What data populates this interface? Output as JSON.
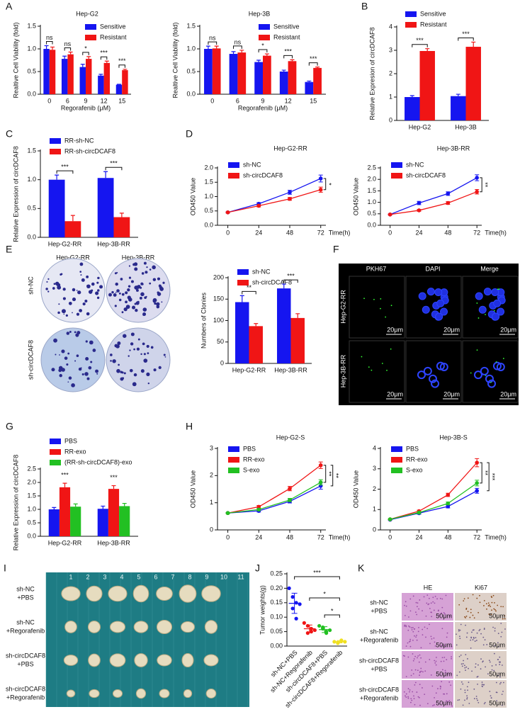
{
  "panel_letters": [
    "A",
    "B",
    "C",
    "D",
    "E",
    "F",
    "G",
    "H",
    "I",
    "J",
    "K"
  ],
  "chart_data": [
    {
      "type": "bar",
      "title": "Hep-G2",
      "xlabel": "Regorafenib (μM)",
      "ylabel": "Realtive Cell Viability (fold)",
      "categories": [
        "0",
        "6",
        "9",
        "12",
        "15"
      ],
      "series": [
        {
          "name": "Sensitive",
          "color": "#1515f0",
          "values": [
            1.0,
            0.78,
            0.6,
            0.41,
            0.21
          ],
          "errors": [
            0.07,
            0.06,
            0.06,
            0.03,
            0.01
          ]
        },
        {
          "name": "Resistant",
          "color": "#f01515",
          "values": [
            0.98,
            0.88,
            0.78,
            0.69,
            0.53
          ],
          "errors": [
            0.06,
            0.05,
            0.05,
            0.04,
            0.02
          ]
        }
      ],
      "ylim": [
        0,
        1.5
      ],
      "yticks": [
        {
          "value": 0,
          "label": "0.0"
        },
        0.5,
        {
          "value": 1,
          "label": "1.0"
        },
        1.5
      ],
      "annotations": [
        "ns",
        "ns",
        "*",
        "***",
        "***"
      ],
      "legend": "upper right"
    },
    {
      "type": "bar",
      "title": "Hep-3B",
      "xlabel": "Regorafenib (μM)",
      "ylabel": "Realtive Cell Viability (fold)",
      "categories": [
        "0",
        "6",
        "9",
        "12",
        "15"
      ],
      "series": [
        {
          "name": "Sensitive",
          "color": "#1515f0",
          "values": [
            1.0,
            0.89,
            0.71,
            0.5,
            0.27
          ],
          "errors": [
            0.06,
            0.05,
            0.04,
            0.03,
            0.02
          ]
        },
        {
          "name": "Resistant",
          "color": "#f01515",
          "values": [
            1.01,
            0.92,
            0.85,
            0.73,
            0.58
          ],
          "errors": [
            0.05,
            0.05,
            0.04,
            0.03,
            0.02
          ]
        }
      ],
      "ylim": [
        0,
        1.5
      ],
      "yticks": [
        {
          "value": 0,
          "label": "0.0"
        },
        0.5,
        {
          "value": 1,
          "label": "1.0"
        },
        1.5
      ],
      "annotations": [
        "ns",
        "ns",
        "*",
        "***",
        "***"
      ],
      "legend": "upper right"
    },
    {
      "type": "bar",
      "ylabel": "Relative Expresion of circDCAF8",
      "categories": [
        "Hep-G2",
        "Hep-3B"
      ],
      "series": [
        {
          "name": "Sensitive",
          "color": "#1515f0",
          "values": [
            1.0,
            1.04
          ],
          "errors": [
            0.06,
            0.08
          ]
        },
        {
          "name": "Resistant",
          "color": "#f01515",
          "values": [
            2.97,
            3.15
          ],
          "errors": [
            0.1,
            0.2
          ]
        }
      ],
      "ylim": [
        0,
        4
      ],
      "yticks": [
        0,
        1,
        2,
        3,
        4
      ],
      "annotations": [
        "***",
        "***"
      ],
      "legend": "upper left"
    },
    {
      "type": "bar",
      "ylabel": "Relative Expression of circDCAF8",
      "categories": [
        "Hep-G2-RR",
        "Hep-3B-RR"
      ],
      "series": [
        {
          "name": "RR-sh-NC",
          "color": "#1515f0",
          "values": [
            1.0,
            1.03
          ],
          "errors": [
            0.08,
            0.11
          ]
        },
        {
          "name": "RR-sh-circDCAF8",
          "color": "#f01515",
          "values": [
            0.28,
            0.35
          ],
          "errors": [
            0.1,
            0.07
          ]
        }
      ],
      "ylim": [
        0,
        1.5
      ],
      "yticks": [
        {
          "value": 0,
          "label": "0.0"
        },
        0.5,
        {
          "value": 1,
          "label": "1.0"
        },
        1.5
      ],
      "annotations": [
        "***",
        "***"
      ],
      "legend": "upper left"
    },
    {
      "type": "line",
      "title": "Hep-G2-RR",
      "xlabel": "Time(h)",
      "ylabel": "OD450 Value",
      "x": [
        0,
        24,
        48,
        72
      ],
      "xlim": [
        -8,
        76
      ],
      "xticks": [
        0,
        24,
        48,
        72
      ],
      "series": [
        {
          "name": "sh-NC",
          "color": "#1515f0",
          "values": [
            0.45,
            0.75,
            1.15,
            1.63
          ],
          "errors": [
            0.02,
            0.04,
            0.07,
            0.12
          ]
        },
        {
          "name": "sh-circDCAF8",
          "color": "#f01515",
          "values": [
            0.45,
            0.68,
            0.92,
            1.24
          ],
          "errors": [
            0.02,
            0.04,
            0.05,
            0.09
          ]
        }
      ],
      "ylim": [
        0,
        2
      ],
      "yticks": [
        {
          "value": 0,
          "label": "0.0"
        },
        0.5,
        {
          "value": 1,
          "label": "1.0"
        },
        1.5,
        {
          "value": 2,
          "label": "2.0"
        }
      ],
      "annotations": [
        "*"
      ],
      "legend": "upper left"
    },
    {
      "type": "line",
      "title": "Hep-3B-RR",
      "xlabel": "Time(h)",
      "ylabel": "OD450 Value",
      "x": [
        0,
        24,
        48,
        72
      ],
      "xlim": [
        -8,
        76
      ],
      "xticks": [
        0,
        24,
        48,
        72
      ],
      "series": [
        {
          "name": "sh-NC",
          "color": "#1515f0",
          "values": [
            0.47,
            0.97,
            1.38,
            2.07
          ],
          "errors": [
            0.02,
            0.07,
            0.08,
            0.13
          ]
        },
        {
          "name": "sh-circDCAF8",
          "color": "#f01515",
          "values": [
            0.47,
            0.65,
            0.97,
            1.46
          ],
          "errors": [
            0.02,
            0.04,
            0.06,
            0.1
          ]
        }
      ],
      "ylim": [
        0,
        2.5
      ],
      "yticks": [
        {
          "value": 0,
          "label": "0.0"
        },
        0.5,
        {
          "value": 1,
          "label": "1.0"
        },
        1.5,
        {
          "value": 2,
          "label": "2.0"
        },
        2.5
      ],
      "annotations": [
        "**"
      ],
      "legend": "upper left"
    },
    {
      "type": "bar",
      "ylabel": "Numbers of Clonies",
      "categories": [
        "Hep-G2-RR",
        "Hep-3B-RR"
      ],
      "series": [
        {
          "name": "sh-NC",
          "color": "#1515f0",
          "values": [
            143,
            175
          ],
          "errors": [
            15,
            10
          ]
        },
        {
          "name": "sh-circDCAF8",
          "color": "#f01515",
          "values": [
            87,
            106
          ],
          "errors": [
            6,
            10
          ]
        }
      ],
      "ylim": [
        0,
        200
      ],
      "yticks": [
        0,
        50,
        100,
        150,
        200
      ],
      "annotations": [
        "**",
        "***"
      ],
      "legend": "upper left"
    },
    {
      "type": "bar",
      "ylabel": "Relative Expression of circDCAF8",
      "categories": [
        "Hep-G2-RR",
        "Hep-3B-RR"
      ],
      "series": [
        {
          "name": "PBS",
          "color": "#1515f0",
          "values": [
            1.0,
            1.02
          ],
          "errors": [
            0.07,
            0.1
          ]
        },
        {
          "name": "RR-exo",
          "color": "#f01515",
          "values": [
            1.82,
            1.76
          ],
          "errors": [
            0.15,
            0.12
          ]
        },
        {
          "name": "(RR-sh-circDCAF8)-exo",
          "color": "#22c022",
          "values": [
            1.1,
            1.12
          ],
          "errors": [
            0.1,
            0.1
          ]
        }
      ],
      "ylim": [
        0,
        2.5
      ],
      "yticks": [
        {
          "value": 0,
          "label": "0.0"
        },
        0.5,
        {
          "value": 1,
          "label": "1.0"
        },
        1.5,
        {
          "value": 2,
          "label": "2.0"
        },
        2.5
      ],
      "annotations": [
        "***",
        "***"
      ],
      "legend": "upper left"
    },
    {
      "type": "line",
      "title": "Hep-G2-S",
      "xlabel": "Time(h)",
      "ylabel": "OD450 Value",
      "x": [
        0,
        24,
        48,
        72
      ],
      "xlim": [
        -8,
        76
      ],
      "xticks": [
        0,
        24,
        48,
        72
      ],
      "series": [
        {
          "name": "PBS",
          "color": "#1515f0",
          "values": [
            0.62,
            0.7,
            1.05,
            1.62
          ],
          "errors": [
            0.02,
            0.04,
            0.06,
            0.12
          ]
        },
        {
          "name": "RR-exo",
          "color": "#f01515",
          "values": [
            0.62,
            0.85,
            1.52,
            2.38
          ],
          "errors": [
            0.02,
            0.05,
            0.08,
            0.12
          ]
        },
        {
          "name": "S-exo",
          "color": "#22c022",
          "values": [
            0.62,
            0.75,
            1.1,
            1.75
          ],
          "errors": [
            0.02,
            0.04,
            0.06,
            0.1
          ]
        }
      ],
      "ylim": [
        0,
        3
      ],
      "yticks": [
        0,
        1,
        2,
        3
      ],
      "annotations": [
        "**",
        "**"
      ],
      "legend": "upper left"
    },
    {
      "type": "line",
      "title": "Hep-3B-S",
      "xlabel": "Time(h)",
      "ylabel": "OD450 Value",
      "x": [
        0,
        24,
        48,
        72
      ],
      "xlim": [
        -8,
        76
      ],
      "xticks": [
        0,
        24,
        48,
        72
      ],
      "series": [
        {
          "name": "PBS",
          "color": "#1515f0",
          "values": [
            0.5,
            0.82,
            1.15,
            1.92
          ],
          "errors": [
            0.02,
            0.05,
            0.07,
            0.12
          ]
        },
        {
          "name": "RR-exo",
          "color": "#f01515",
          "values": [
            0.52,
            0.92,
            1.72,
            3.3
          ],
          "errors": [
            0.02,
            0.05,
            0.08,
            0.2
          ]
        },
        {
          "name": "S-exo",
          "color": "#22c022",
          "values": [
            0.52,
            0.85,
            1.3,
            2.3
          ],
          "errors": [
            0.02,
            0.05,
            0.07,
            0.14
          ]
        }
      ],
      "ylim": [
        0,
        4
      ],
      "yticks": [
        0,
        1,
        2,
        3,
        4
      ],
      "annotations": [
        "**",
        "***"
      ],
      "legend": "upper left"
    },
    {
      "type": "dot",
      "ylabel": "Tumor weights(g)",
      "categories": [
        "sh-NC+PBS",
        "sh-NC+Regorafenib",
        "sh-circDCAF8+PBS",
        "sh-circDCAF8+Regorafenib"
      ],
      "colors": [
        "#1515f0",
        "#f01515",
        "#22c022",
        "#f0e020"
      ],
      "values": [
        [
          0.2,
          0.17,
          0.15,
          0.13,
          0.095,
          0.145
        ],
        [
          0.08,
          0.07,
          0.05,
          0.045,
          0.06,
          0.055
        ],
        [
          0.07,
          0.06,
          0.05,
          0.065,
          0.045,
          0.055
        ],
        [
          0.015,
          0.01,
          0.02,
          0.012,
          0.018,
          0.015
        ]
      ],
      "means": [
        0.148,
        0.06,
        0.057,
        0.015
      ],
      "sds": [
        0.035,
        0.013,
        0.01,
        0.004
      ],
      "ylim": [
        0,
        0.25
      ],
      "yticks": [
        {
          "value": 0,
          "label": "0.00"
        },
        0.05,
        {
          "value": 0.1,
          "label": "0.10"
        },
        0.15,
        {
          "value": 0.2,
          "label": "0.20"
        },
        0.25
      ],
      "annotations": [
        "***",
        "*",
        "*"
      ]
    }
  ],
  "colony_images": {
    "columns": [
      "Hep-G2-RR",
      "Hep-3B-RR"
    ],
    "rows": [
      "sh-NC",
      "sh-circDCAF8"
    ]
  },
  "fluorescence_images": {
    "columns": [
      "PKH67",
      "DAPI",
      "Merge"
    ],
    "rows": [
      "Hep-G2-RR",
      "Hep-3B-RR"
    ],
    "scale": "20μm"
  },
  "groups": [
    [
      "sh-NC",
      "+PBS"
    ],
    [
      "sh-NC",
      "+Regorafenib"
    ],
    [
      "sh-circDCAF8",
      "+PBS"
    ],
    [
      "sh-circDCAF8",
      "+Regorafenib"
    ]
  ],
  "tumor_image": {
    "ruler": [
      1,
      2,
      3,
      4,
      5,
      6,
      7,
      8,
      9,
      10,
      11
    ]
  },
  "histology_images": {
    "columns": [
      "HE",
      "Ki67"
    ],
    "scale": "50μm"
  }
}
